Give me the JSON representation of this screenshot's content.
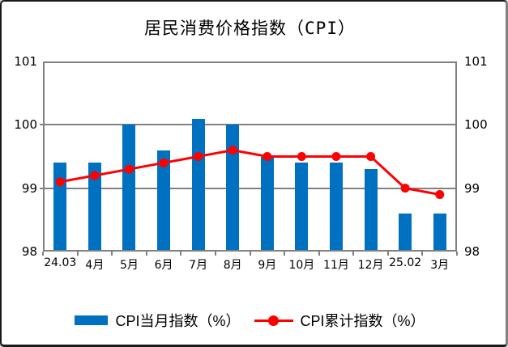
{
  "title": "居民消费价格指数（CPI）",
  "legend": {
    "bar_label": "CPI当月指数（%）",
    "line_label": "CPI累计指数（%）"
  },
  "colors": {
    "bar": "#0070C0",
    "line": "#FF0000",
    "axis": "#808080",
    "text": "#000000",
    "background": "#FFFFFF"
  },
  "chart_data": {
    "type": "bar",
    "categories": [
      "24.03",
      "4月",
      "5月",
      "6月",
      "7月",
      "8月",
      "9月",
      "10月",
      "11月",
      "12月",
      "25.02",
      "3月"
    ],
    "series": [
      {
        "name": "CPI当月指数（%）",
        "type": "bar",
        "color": "#0070C0",
        "values": [
          99.4,
          99.4,
          100.0,
          99.6,
          100.1,
          100.0,
          99.5,
          99.4,
          99.4,
          99.3,
          98.6,
          98.6
        ]
      },
      {
        "name": "CPI累计指数（%）",
        "type": "line",
        "color": "#FF0000",
        "values": [
          99.1,
          99.2,
          99.3,
          99.4,
          99.5,
          99.6,
          99.5,
          99.5,
          99.5,
          99.5,
          99.0,
          98.9
        ]
      }
    ],
    "title": "居民消费价格指数（CPI）",
    "xlabel": "",
    "ylabel": "",
    "ylim": [
      98,
      101
    ],
    "yticks": [
      98,
      99,
      100,
      101
    ],
    "grid": true,
    "legend_position": "bottom",
    "y_axis_sides": [
      "left",
      "right"
    ]
  }
}
